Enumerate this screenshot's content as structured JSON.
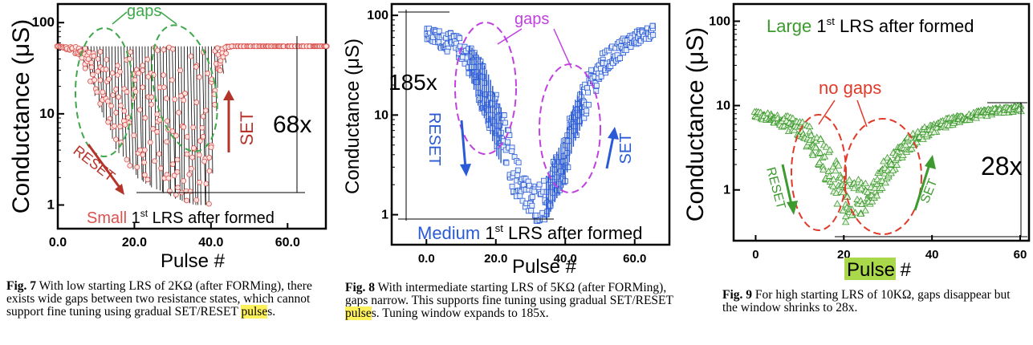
{
  "panels": [
    {
      "id": "fig7",
      "caption": {
        "label": "Fig. 7",
        "text": " With low starting LRS of 2KΩ (after FORMing), there exists wide gaps between two resistance states, which cannot support fine tuning using gradual SET/RESET ",
        "highlight": "pulse",
        "tail": "s."
      },
      "legend": {
        "word": "Small",
        "sup": "st",
        "rest": " LRS after formed",
        "num": "1"
      },
      "annotations": {
        "gaps": "gaps",
        "set": "SET",
        "reset": "RESET",
        "window": "68x"
      }
    },
    {
      "id": "fig8",
      "caption": {
        "label": "Fig. 8",
        "text": " With intermediate starting LRS of 5KΩ (after FORMing), gaps narrow. This supports fine tuning using gradual SET/RESET ",
        "highlight": "pulse",
        "tail": "s. Tuning window expands to 185x."
      },
      "legend": {
        "word": "Medium",
        "sup": "st",
        "rest": " LRS after formed",
        "num": "1"
      },
      "annotations": {
        "gaps": "gaps",
        "set": "SET",
        "reset": "RESET",
        "window": "185x"
      }
    },
    {
      "id": "fig9",
      "caption": {
        "label": "Fig. 9",
        "text": " For high starting LRS of 10KΩ, gaps disappear but the window shrinks to 28x.",
        "highlight": "",
        "tail": ""
      },
      "legend": {
        "word": "Large",
        "sup": "st",
        "rest": " LRS after formed",
        "num": "1"
      },
      "annotations": {
        "gaps": "no gaps",
        "set": "SET",
        "reset": "RESET",
        "window": "28x"
      }
    }
  ],
  "colors": {
    "fig7": "#d9534f",
    "fig8": "#2a5ad6",
    "fig9": "#3c9a2e",
    "gap7": "#3ea84a",
    "gap8": "#c040e0",
    "gap9": "#e03a2a"
  },
  "chart_data": [
    {
      "type": "scatter",
      "title": "",
      "xlabel": "Pulse #",
      "ylabel": "Conductance (μS)",
      "yscale": "log",
      "xlim": [
        0,
        70
      ],
      "ylim": [
        0.55,
        160
      ],
      "xticks": [
        "0.0",
        "20.0",
        "40.0",
        "60.0"
      ],
      "yticks": [
        "1",
        "10",
        "100"
      ],
      "series": [
        {
          "name": "Small 1st LRS after formed",
          "x": [
            0,
            5,
            10,
            15,
            20,
            25,
            30,
            35,
            40,
            45,
            50,
            55,
            60,
            65,
            70
          ],
          "high": [
            55,
            55,
            55,
            55,
            55,
            55,
            55,
            55,
            55,
            55,
            55,
            55,
            55,
            55,
            55
          ],
          "low": [
            55,
            45,
            12,
            4,
            2,
            1.5,
            1.2,
            1.0,
            1.0,
            55,
            55,
            55,
            55,
            55,
            55
          ]
        }
      ]
    },
    {
      "type": "scatter",
      "title": "",
      "xlabel": "Pulse #",
      "ylabel": "Conductance (μS)",
      "yscale": "log",
      "xlim": [
        -10,
        70
      ],
      "ylim": [
        0.5,
        130
      ],
      "xticks": [
        "0.0",
        "20.0",
        "40.0",
        "60.0"
      ],
      "yticks": [
        "1",
        "10",
        "100"
      ],
      "series": [
        {
          "name": "Medium 1st LRS after formed",
          "x": [
            0,
            5,
            10,
            15,
            20,
            25,
            30,
            35,
            40,
            45,
            50,
            55,
            60,
            65
          ],
          "high": [
            75,
            70,
            60,
            40,
            15,
            4,
            2,
            2.5,
            6,
            20,
            40,
            55,
            70,
            80
          ],
          "low": [
            55,
            45,
            35,
            12,
            4,
            1.6,
            0.8,
            0.9,
            2,
            8,
            20,
            35,
            50,
            60
          ]
        }
      ]
    },
    {
      "type": "scatter",
      "title": "",
      "xlabel": "Pulse #",
      "ylabel": "Conductance (μS)",
      "yscale": "log",
      "xlim": [
        -5,
        62
      ],
      "ylim": [
        0.25,
        160
      ],
      "xticks": [
        "0",
        "20",
        "40",
        "60"
      ],
      "yticks": [
        "1",
        "10",
        "100"
      ],
      "series": [
        {
          "name": "Large 1st LRS after formed",
          "x": [
            0,
            5,
            10,
            15,
            20,
            25,
            30,
            35,
            40,
            45,
            50,
            55,
            60
          ],
          "high": [
            8.5,
            8,
            7,
            4,
            1.6,
            1.2,
            2.5,
            4.5,
            6,
            7.5,
            8.5,
            9.5,
            10
          ],
          "low": [
            7,
            6,
            4,
            1.5,
            0.4,
            0.5,
            1.2,
            3,
            4.5,
            6,
            7,
            8,
            8.5
          ]
        }
      ]
    }
  ]
}
